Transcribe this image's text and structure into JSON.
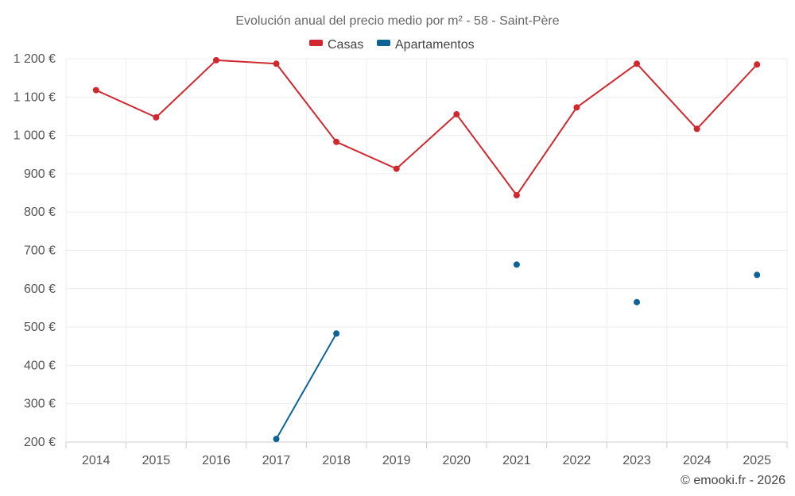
{
  "chart_data": {
    "type": "line",
    "title": "Evolución anual del precio medio por m² - 58 - Saint-Père",
    "categories": [
      "2014",
      "2015",
      "2016",
      "2017",
      "2018",
      "2019",
      "2020",
      "2021",
      "2022",
      "2023",
      "2024",
      "2025"
    ],
    "ylim": [
      200,
      1200
    ],
    "yticks": [
      200,
      300,
      400,
      500,
      600,
      700,
      800,
      900,
      1000,
      1100,
      1200
    ],
    "ytick_labels": [
      "200 €",
      "300 €",
      "400 €",
      "500 €",
      "600 €",
      "700 €",
      "800 €",
      "900 €",
      "1 000 €",
      "1 100 €",
      "1 200 €"
    ],
    "series": [
      {
        "name": "Casas",
        "color": "#d0282e",
        "values": [
          1118,
          1047,
          1196,
          1187,
          983,
          913,
          1055,
          844,
          1073,
          1187,
          1017,
          1185
        ]
      },
      {
        "name": "Apartamentos",
        "color": "#0d6398",
        "values": [
          null,
          null,
          null,
          208,
          483,
          null,
          null,
          663,
          null,
          565,
          null,
          636
        ]
      }
    ],
    "legend_position": "top",
    "grid": true
  },
  "credit": "© emooki.fr - 2026"
}
